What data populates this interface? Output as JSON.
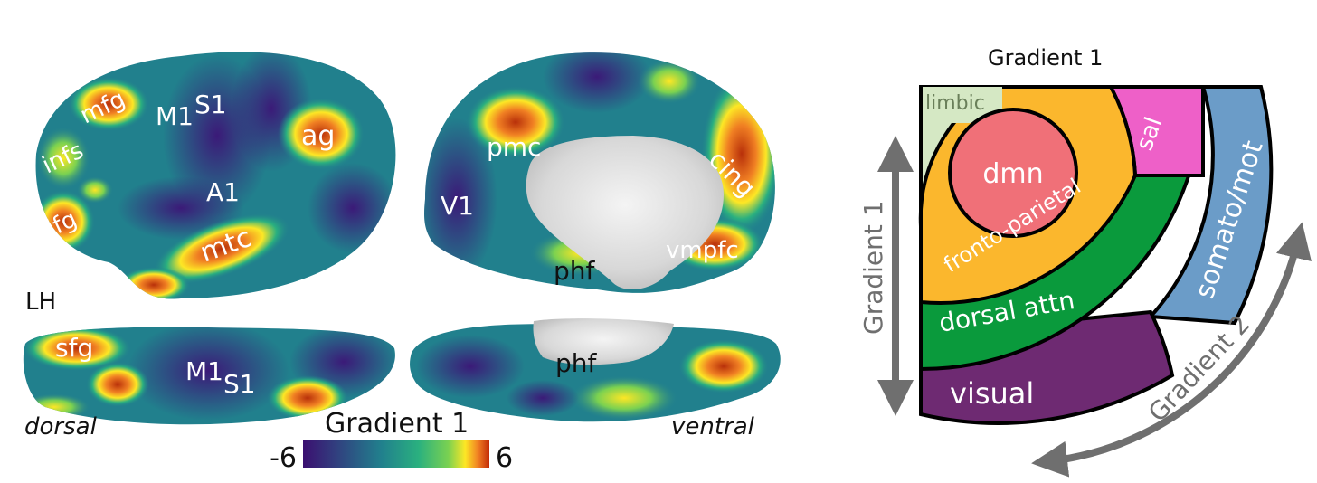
{
  "left_panel": {
    "hemisphere_label": "LH",
    "lateral_labels": {
      "mfg": "mfg",
      "m1": "M1",
      "s1": "S1",
      "infs": "infs",
      "ag": "ag",
      "a1": "A1",
      "ifg": "ifg",
      "mtc": "mtc"
    },
    "medial_labels": {
      "pmc": "pmc",
      "cing": "cing",
      "v1": "V1",
      "vmpfc": "vmpfc",
      "phf": "phf"
    },
    "dorsal_labels": {
      "sfg": "sfg",
      "m1": "M1",
      "s1": "S1"
    },
    "ventral_labels": {
      "phf": "phf"
    },
    "view_dorsal": "dorsal",
    "view_ventral": "ventral",
    "colorbar": {
      "title": "Gradient 1",
      "min": "-6",
      "max": "6",
      "colors": [
        "#3b0f70",
        "#31407f",
        "#21808d",
        "#2ab07f",
        "#7ad151",
        "#fde725",
        "#f07f23",
        "#c22a07"
      ]
    }
  },
  "right_panel": {
    "top_label": "Gradient 1",
    "axis1_label": "Gradient 1",
    "axis2_label": "Gradient 2",
    "networks": {
      "limbic": {
        "label": "limbic",
        "color": "#d5e8c4"
      },
      "dmn": {
        "label": "dmn",
        "color": "#f07078"
      },
      "fronto_parietal": {
        "label": "fronto-parietal",
        "color": "#fbb72d"
      },
      "sal": {
        "label": "sal",
        "color": "#ee60c8"
      },
      "dorsal_attn": {
        "label": "dorsal attn",
        "color": "#0a9a3c"
      },
      "somato_mot": {
        "label": "somato/mot",
        "color": "#6b9cc8"
      },
      "visual": {
        "label": "visual",
        "color": "#6e2a72"
      }
    }
  }
}
